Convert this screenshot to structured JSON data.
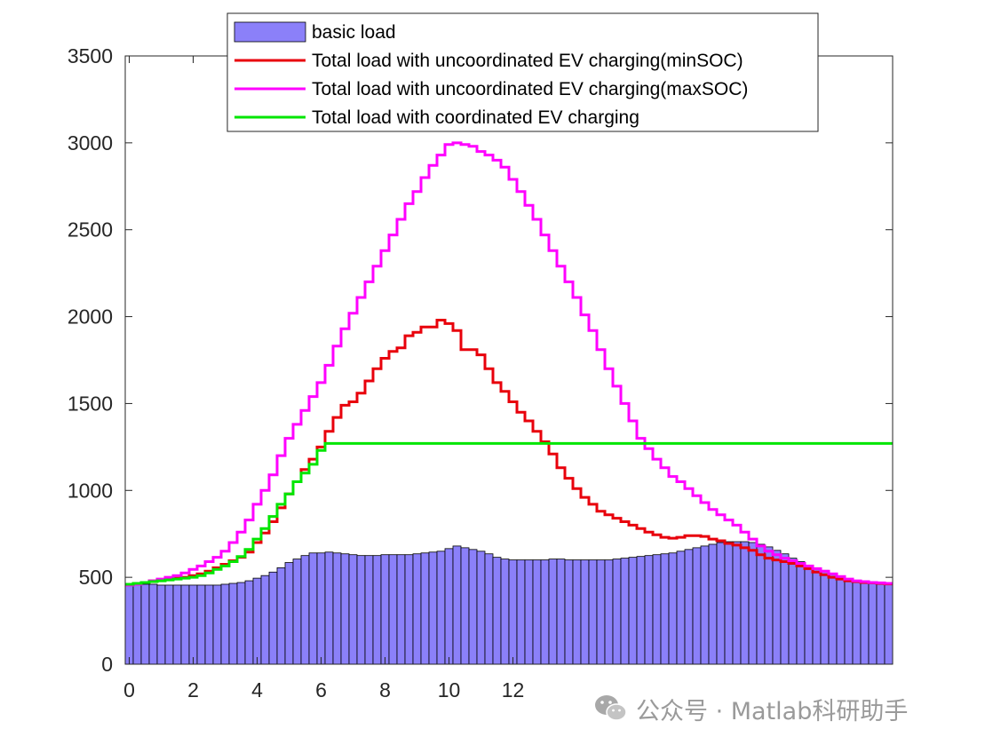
{
  "chart_data": {
    "type": "bar",
    "xlim": [
      -0.125,
      23.875
    ],
    "ylim": [
      0,
      3500
    ],
    "xticks": [
      0,
      2,
      4,
      6,
      8,
      10,
      12
    ],
    "xtick_labels": [
      "0",
      "2",
      "4",
      "6",
      "8",
      "10",
      "12"
    ],
    "yticks": [
      0,
      500,
      1000,
      1500,
      2000,
      2500,
      3000,
      3500
    ],
    "ytick_labels": [
      "0",
      "500",
      "1000",
      "1500",
      "2000",
      "2500",
      "3000",
      "3500"
    ],
    "step": 0.25,
    "x": [
      0,
      0.25,
      0.5,
      0.75,
      1,
      1.25,
      1.5,
      1.75,
      2,
      2.25,
      2.5,
      2.75,
      3,
      3.25,
      3.5,
      3.75,
      4,
      4.25,
      4.5,
      4.75,
      5,
      5.25,
      5.5,
      5.75,
      6,
      6.25,
      6.5,
      6.75,
      7,
      7.25,
      7.5,
      7.75,
      8,
      8.25,
      8.5,
      8.75,
      9,
      9.25,
      9.5,
      9.75,
      10,
      10.25,
      10.5,
      10.75,
      11,
      11.25,
      11.5,
      11.75,
      12,
      12.25,
      12.5,
      12.75,
      13,
      13.25,
      13.5,
      13.75,
      14,
      14.25,
      14.5,
      14.75,
      15,
      15.25,
      15.5,
      15.75,
      16,
      16.25,
      16.5,
      16.75,
      17,
      17.25,
      17.5,
      17.75,
      18,
      18.25,
      18.5,
      18.75,
      19,
      19.25,
      19.5,
      19.75,
      20,
      20.25,
      20.5,
      20.75,
      21,
      21.25,
      21.5,
      21.75,
      22,
      22.25,
      22.5,
      22.75,
      23,
      23.25,
      23.5,
      23.75
    ],
    "series": [
      {
        "name": "basic load",
        "kind": "bar",
        "color": "#8b80f9",
        "values": [
          460,
          460,
          460,
          460,
          455,
          455,
          455,
          455,
          455,
          455,
          455,
          455,
          460,
          465,
          470,
          480,
          495,
          510,
          530,
          555,
          585,
          605,
          625,
          640,
          640,
          645,
          640,
          635,
          630,
          625,
          625,
          625,
          630,
          630,
          630,
          630,
          635,
          640,
          645,
          650,
          665,
          680,
          670,
          660,
          650,
          635,
          615,
          605,
          600,
          600,
          600,
          600,
          600,
          605,
          605,
          600,
          600,
          600,
          600,
          600,
          600,
          605,
          610,
          615,
          620,
          625,
          630,
          635,
          640,
          650,
          660,
          670,
          680,
          690,
          700,
          705,
          705,
          705,
          700,
          690,
          675,
          655,
          635,
          610,
          590,
          570,
          555,
          540,
          520,
          505,
          490,
          480,
          470,
          465,
          460,
          460
        ]
      },
      {
        "name": "Total load with uncoordinated EV charging(minSOC)",
        "kind": "line",
        "color": "#e8000b",
        "values": [
          455,
          460,
          470,
          480,
          485,
          490,
          495,
          500,
          510,
          520,
          535,
          555,
          575,
          595,
          615,
          645,
          700,
          755,
          820,
          900,
          980,
          1050,
          1120,
          1180,
          1250,
          1340,
          1420,
          1490,
          1510,
          1560,
          1630,
          1700,
          1760,
          1800,
          1820,
          1890,
          1910,
          1940,
          1940,
          1980,
          1960,
          1920,
          1810,
          1810,
          1780,
          1700,
          1620,
          1570,
          1510,
          1450,
          1400,
          1340,
          1280,
          1210,
          1130,
          1070,
          1010,
          960,
          920,
          880,
          860,
          840,
          820,
          800,
          780,
          760,
          745,
          730,
          725,
          730,
          740,
          740,
          735,
          720,
          710,
          695,
          685,
          670,
          655,
          630,
          610,
          600,
          590,
          580,
          565,
          550,
          530,
          515,
          500,
          490,
          480,
          475,
          470,
          468,
          465,
          462
        ]
      },
      {
        "name": "Total load with uncoordinated EV charging(maxSOC)",
        "kind": "line",
        "color": "#ff00ff",
        "values": [
          455,
          460,
          470,
          480,
          490,
          500,
          510,
          525,
          545,
          565,
          590,
          615,
          650,
          700,
          760,
          830,
          920,
          1000,
          1090,
          1200,
          1300,
          1380,
          1460,
          1540,
          1620,
          1720,
          1830,
          1930,
          2020,
          2110,
          2200,
          2290,
          2380,
          2470,
          2560,
          2650,
          2720,
          2800,
          2870,
          2930,
          2990,
          3000,
          2990,
          2980,
          2950,
          2930,
          2900,
          2860,
          2790,
          2720,
          2640,
          2560,
          2470,
          2380,
          2290,
          2200,
          2110,
          2010,
          1920,
          1810,
          1700,
          1600,
          1500,
          1400,
          1300,
          1240,
          1180,
          1130,
          1080,
          1050,
          1010,
          970,
          930,
          890,
          860,
          830,
          800,
          760,
          720,
          680,
          650,
          630,
          610,
          595,
          580,
          565,
          550,
          535,
          520,
          505,
          490,
          480,
          475,
          470,
          468,
          465
        ]
      },
      {
        "name": "Total load with coordinated EV charging",
        "kind": "line",
        "color": "#00e600",
        "values": [
          460,
          465,
          470,
          475,
          480,
          485,
          490,
          495,
          500,
          510,
          525,
          545,
          565,
          590,
          620,
          660,
          720,
          780,
          850,
          920,
          980,
          1050,
          1100,
          1150,
          1230,
          1270,
          1270,
          1270,
          1270,
          1270,
          1270,
          1270,
          1270,
          1270,
          1270,
          1270,
          1270,
          1270,
          1270,
          1270,
          1270,
          1270,
          1270,
          1270,
          1270,
          1270,
          1270,
          1270,
          1270,
          1270,
          1270,
          1270,
          1270,
          1270,
          1270,
          1270,
          1270,
          1270,
          1270,
          1270,
          1270,
          1270,
          1270,
          1270,
          1270,
          1270,
          1270,
          1270,
          1270,
          1270,
          1270,
          1270,
          1270,
          1270,
          1270,
          1270,
          1270,
          1270,
          1270,
          1270,
          1270,
          1270,
          1270,
          1270,
          1270,
          1270,
          1270,
          1270,
          1270,
          1270,
          1270,
          1270,
          1270,
          1270,
          1270,
          1270
        ]
      }
    ],
    "legend_position": "top"
  },
  "watermark": {
    "icon": "wechat-icon",
    "text": "公众号 · Matlab科研助手"
  }
}
